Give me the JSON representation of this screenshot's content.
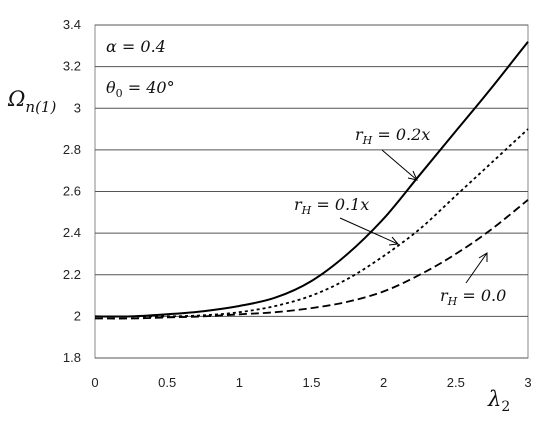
{
  "chart_data": {
    "type": "line",
    "title": "",
    "xlabel": "λ₂",
    "ylabel": "Ωn(1)",
    "xlim": [
      0,
      3
    ],
    "ylim": [
      1.8,
      3.4
    ],
    "x_ticks": [
      "0",
      "0.5",
      "1",
      "1.5",
      "2",
      "2.5",
      "3"
    ],
    "y_ticks": [
      "1.8",
      "2",
      "2.2",
      "2.4",
      "2.6",
      "2.8",
      "3",
      "3.2",
      "3.4"
    ],
    "grid": "horizontal",
    "parameters": [
      "α = 0.4",
      "θ₀ = 40°"
    ],
    "series": [
      {
        "name": "rH = 0.2x",
        "style": "solid",
        "color": "#000000",
        "x": [
          0,
          0.25,
          0.5,
          0.75,
          1.0,
          1.25,
          1.5,
          1.75,
          2.0,
          2.25,
          2.5,
          2.75,
          3.0
        ],
        "y": [
          2.0,
          2.0,
          2.01,
          2.025,
          2.05,
          2.09,
          2.17,
          2.3,
          2.47,
          2.68,
          2.89,
          3.1,
          3.32
        ]
      },
      {
        "name": "rH = 0.1x",
        "style": "dotted",
        "color": "#000000",
        "x": [
          0,
          0.25,
          0.5,
          0.75,
          1.0,
          1.25,
          1.5,
          1.75,
          2.0,
          2.25,
          2.5,
          2.75,
          3.0
        ],
        "y": [
          2.0,
          2.0,
          2.0,
          2.005,
          2.02,
          2.05,
          2.1,
          2.18,
          2.29,
          2.42,
          2.58,
          2.74,
          2.9
        ]
      },
      {
        "name": "rH = 0.0",
        "style": "dashed",
        "color": "#000000",
        "x": [
          0,
          0.25,
          0.5,
          0.75,
          1.0,
          1.25,
          1.5,
          1.75,
          2.0,
          2.25,
          2.5,
          2.75,
          3.0
        ],
        "y": [
          1.99,
          1.99,
          1.995,
          2.0,
          2.01,
          2.02,
          2.04,
          2.07,
          2.12,
          2.2,
          2.3,
          2.42,
          2.56
        ]
      }
    ]
  }
}
